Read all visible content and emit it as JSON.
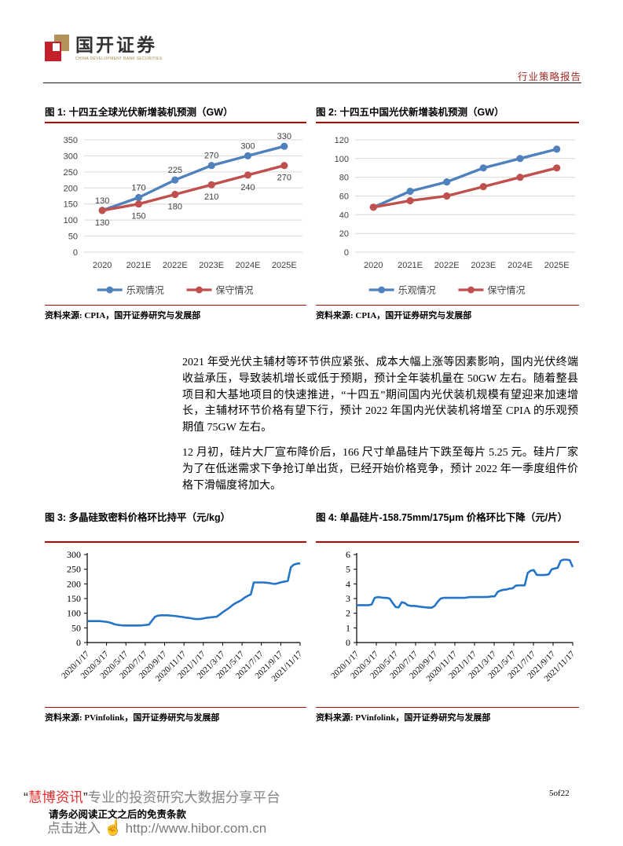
{
  "header": {
    "logo_title": "国开证券",
    "logo_subtitle": "CHINA DEVELOPMENT BANK SECURITIES",
    "report_type": "行业策略报告"
  },
  "colors": {
    "accent_red": "#C00000",
    "optimistic_blue": "#4F81BD",
    "conservative_red": "#C0504D",
    "price_line_blue": "#2475C8",
    "gridline_gray": "#D9D9D9"
  },
  "chart_data": [
    {
      "type": "line",
      "title": "图 1: 十四五全球光伏新增装机预测（GW）",
      "source": "资料来源: CPIA，国开证券研究与发展部",
      "categories": [
        "2020",
        "2021E",
        "2022E",
        "2023E",
        "2024E",
        "2025E"
      ],
      "series": [
        {
          "name": "乐观情况",
          "color": "#4F81BD",
          "values": [
            130,
            170,
            225,
            270,
            300,
            330
          ],
          "label_position": "above"
        },
        {
          "name": "保守情况",
          "color": "#C0504D",
          "values": [
            130,
            150,
            180,
            210,
            240,
            270
          ],
          "label_position": "below"
        }
      ],
      "show_data_labels": true,
      "ylim": [
        0,
        350
      ],
      "ystep": 50,
      "grid": true,
      "axis_box": false,
      "legend_position": "bottom",
      "xlabel": "",
      "ylabel": ""
    },
    {
      "type": "line",
      "title": "图 2: 十四五中国光伏新增装机预测（GW）",
      "source": "资料来源: CPIA，国开证券研究与发展部",
      "categories": [
        "2020",
        "2021E",
        "2022E",
        "2023E",
        "2024E",
        "2025E"
      ],
      "series": [
        {
          "name": "乐观情况",
          "color": "#4F81BD",
          "values": [
            48,
            65,
            75,
            90,
            100,
            110
          ],
          "label_position": "above"
        },
        {
          "name": "保守情况",
          "color": "#C0504D",
          "values": [
            48,
            55,
            60,
            70,
            80,
            90
          ],
          "label_position": "below"
        }
      ],
      "show_data_labels": false,
      "ylim": [
        0,
        120
      ],
      "ystep": 20,
      "grid": true,
      "axis_box": false,
      "legend_position": "bottom",
      "xlabel": "",
      "ylabel": ""
    },
    {
      "type": "line",
      "title": "图 3: 多晶硅致密料价格环比持平（元/kg）",
      "source": "资料来源: PVinfolink，国开证券研究与发展部",
      "x_tick_labels": [
        "2020/1/17",
        "2020/3/17",
        "2020/5/17",
        "2020/7/17",
        "2020/9/17",
        "2020/11/17",
        "2021/1/17",
        "2021/3/17",
        "2021/5/17",
        "2021/7/17",
        "2021/9/17",
        "2021/11/17"
      ],
      "series": [
        {
          "name": "多晶硅致密料价格",
          "color": "#2475C8",
          "values": [
            73,
            73,
            73,
            73,
            73,
            72,
            71,
            69,
            66,
            62,
            60,
            59,
            58,
            58,
            58,
            58,
            58,
            58,
            59,
            60,
            61,
            75,
            88,
            92,
            93,
            93,
            93,
            92,
            91,
            90,
            88,
            87,
            85,
            84,
            82,
            80,
            80,
            81,
            83,
            85,
            86,
            87,
            88,
            96,
            104,
            111,
            118,
            127,
            134,
            139,
            145,
            153,
            159,
            164,
            205,
            205,
            205,
            205,
            204,
            203,
            201,
            200,
            203,
            206,
            208,
            210,
            257,
            266,
            269,
            270
          ]
        }
      ],
      "show_data_labels": false,
      "ylim": [
        0,
        300
      ],
      "ystep": 50,
      "grid": false,
      "axis_box": true,
      "rotated_x_labels": true,
      "legend_position": "none",
      "xlabel": "",
      "ylabel": ""
    },
    {
      "type": "line",
      "title": "图 4: 单晶硅片-158.75mm/175μm 价格环比下降（元/片）",
      "source": "资料来源: PVinfolink，国开证券研究与发展部",
      "x_tick_labels": [
        "2020/1/17",
        "2020/3/17",
        "2020/5/17",
        "2020/7/17",
        "2020/9/17",
        "2020/11/17",
        "2021/1/17",
        "2021/3/17",
        "2021/5/17",
        "2021/7/17",
        "2021/9/17",
        "2021/11/17"
      ],
      "series": [
        {
          "name": "单晶硅片价格",
          "color": "#2475C8",
          "values": [
            2.55,
            2.55,
            2.55,
            2.55,
            2.55,
            2.6,
            3.05,
            3.1,
            3.08,
            3.05,
            3.05,
            3.0,
            2.7,
            2.42,
            2.4,
            2.75,
            2.7,
            2.55,
            2.5,
            2.5,
            2.48,
            2.45,
            2.42,
            2.4,
            2.38,
            2.38,
            2.5,
            2.78,
            3.0,
            3.05,
            3.05,
            3.05,
            3.05,
            3.05,
            3.05,
            3.05,
            3.05,
            3.08,
            3.1,
            3.1,
            3.1,
            3.1,
            3.1,
            3.1,
            3.12,
            3.15,
            3.15,
            3.45,
            3.55,
            3.6,
            3.62,
            3.68,
            3.7,
            3.88,
            3.9,
            3.9,
            3.9,
            4.75,
            4.9,
            4.95,
            4.62,
            4.6,
            4.6,
            4.62,
            4.65,
            5.0,
            5.05,
            5.1,
            5.58,
            5.65,
            5.65,
            5.62,
            5.15
          ]
        }
      ],
      "show_data_labels": false,
      "ylim": [
        0,
        6
      ],
      "ystep": 1,
      "grid": false,
      "axis_box": true,
      "rotated_x_labels": true,
      "legend_position": "none",
      "xlabel": "",
      "ylabel": ""
    }
  ],
  "paragraphs": {
    "p1": "2021 年受光伏主辅材等环节供应紧张、成本大幅上涨等因素影响，国内光伏终端收益承压，导致装机增长或低于预期，预计全年装机量在 50GW 左右。随着整县项目和大基地项目的快速推进，“十四五”期间国内光伏装机规模有望迎来加速增长，主辅材环节价格有望下行，预计 2022 年国内光伏装机将增至 CPIA 的乐观预期值 75GW 左右。",
    "p2": "12 月初，硅片大厂宣布降价后，166 尺寸单晶硅片下跌至每片 5.25 元。硅片厂家为了在低迷需求下争抢订单出货，已经开始价格竞争，预计 2022 年一季度组件价格下滑幅度将加大。"
  },
  "footer": {
    "page_number": "5of22",
    "watermark_quote_open": "“",
    "watermark_brand": "慧博资讯",
    "watermark_quote_close": "”",
    "watermark_tagline": "专业的投资研究大数据分享平台",
    "disclaimer": "请务必阅读正文之后的免责条款",
    "link_prefix": "点击进入",
    "hand_icon": "☝",
    "link_url": "http://www.hibor.com.cn"
  }
}
